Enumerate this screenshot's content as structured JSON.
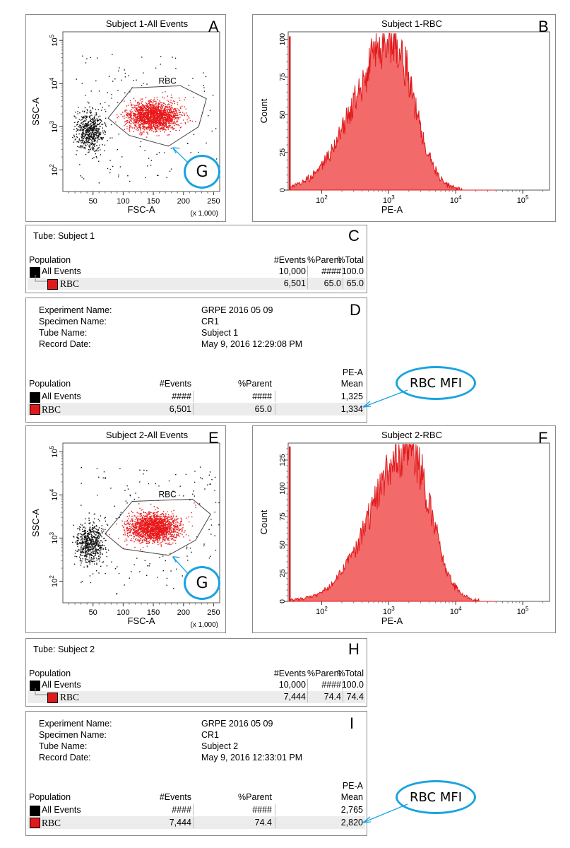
{
  "chart_data": [
    {
      "panel": "A",
      "type": "scatter",
      "title": "Subject 1-All Events",
      "xlabel": "FSC-A",
      "x_multiplier": "(x 1,000)",
      "ylabel": "SSC-A",
      "x_ticks": [
        "50",
        "100",
        "150",
        "200",
        "250"
      ],
      "y_ticks": [
        "10^2",
        "10^3",
        "10^4",
        "10^5"
      ],
      "xlim": [
        0,
        260
      ],
      "ylim_log10": [
        1.5,
        5.2
      ],
      "gate_label": "RBC",
      "gate_points": [
        [
          75,
          3.2
        ],
        [
          115,
          3.9
        ],
        [
          195,
          3.95
        ],
        [
          238,
          3.65
        ],
        [
          225,
          3.0
        ],
        [
          175,
          2.55
        ],
        [
          110,
          2.8
        ]
      ]
    },
    {
      "panel": "B",
      "type": "histogram",
      "title": "Subject 1-RBC",
      "xlabel": "PE-A",
      "ylabel": "Count",
      "x_ticks": [
        "10^2",
        "10^3",
        "10^4",
        "10^5"
      ],
      "y_ticks": [
        "0",
        "25",
        "50",
        "75",
        "100"
      ],
      "ylim": [
        0,
        105
      ],
      "xlim_log10": [
        1.5,
        5.4
      ],
      "peak_log10": 3.05,
      "peak_count": 100
    },
    {
      "panel": "E",
      "type": "scatter",
      "title": "Subject 2-All Events",
      "xlabel": "FSC-A",
      "x_multiplier": "(x 1,000)",
      "ylabel": "SSC-A",
      "x_ticks": [
        "50",
        "100",
        "150",
        "200",
        "250"
      ],
      "y_ticks": [
        "10^2",
        "10^3",
        "10^4",
        "10^5"
      ],
      "xlim": [
        0,
        260
      ],
      "ylim_log10": [
        1.5,
        5.2
      ],
      "gate_label": "RBC",
      "gate_points": [
        [
          70,
          3.1
        ],
        [
          115,
          3.85
        ],
        [
          215,
          3.9
        ],
        [
          245,
          3.55
        ],
        [
          220,
          2.95
        ],
        [
          175,
          2.6
        ],
        [
          100,
          2.75
        ]
      ]
    },
    {
      "panel": "F",
      "type": "histogram",
      "title": "Subject 2-RBC",
      "xlabel": "PE-A",
      "ylabel": "Count",
      "x_ticks": [
        "10^2",
        "10^3",
        "10^4",
        "10^5"
      ],
      "y_ticks": [
        "0",
        "25",
        "50",
        "75",
        "100",
        "125"
      ],
      "ylim": [
        0,
        140
      ],
      "xlim_log10": [
        1.5,
        5.4
      ],
      "peak_log10": 3.3,
      "peak_count": 135
    }
  ],
  "panels": {
    "A": "A",
    "B": "B",
    "C": "C",
    "D": "D",
    "E": "E",
    "F": "F",
    "H": "H",
    "I": "I"
  },
  "callouts": {
    "g_label": "G",
    "mfi_label": "RBC MFI"
  },
  "subject1": {
    "tube": "Tube:   Subject 1",
    "headers": {
      "population": "Population",
      "events": "#Events",
      "parent": "%Parent",
      "total": "%Total",
      "pe_top": "PE-A",
      "pe_bottom": "Mean"
    },
    "rows": [
      {
        "name": "All Events",
        "events": "10,000",
        "parent": "####",
        "total": "100.0",
        "mean": "1,325",
        "events_d": "####",
        "color": "#000000"
      },
      {
        "name": "RBC",
        "events": "6,501",
        "parent": "65.0",
        "total": "65.0",
        "mean": "1,334",
        "events_d": "6,501",
        "color": "#e0191b"
      }
    ],
    "labels": {
      "exp": "Experiment Name:",
      "spec": "Specimen Name:",
      "tube": "Tube Name:",
      "date": "Record Date:"
    },
    "values": {
      "exp": "GRPE 2016 05 09",
      "spec": "CR1",
      "tube": "Subject 1",
      "date": "May 9, 2016 12:29:08 PM"
    }
  },
  "subject2": {
    "tube": "Tube:   Subject 2",
    "headers": {
      "population": "Population",
      "events": "#Events",
      "parent": "%Parent",
      "total": "%Total",
      "pe_top": "PE-A",
      "pe_bottom": "Mean"
    },
    "rows": [
      {
        "name": "All Events",
        "events": "10,000",
        "parent": "####",
        "total": "100.0",
        "mean": "2,765",
        "events_d": "####",
        "color": "#000000"
      },
      {
        "name": "RBC",
        "events": "7,444",
        "parent": "74.4",
        "total": "74.4",
        "mean": "2,820",
        "events_d": "7,444",
        "color": "#e0191b"
      }
    ],
    "labels": {
      "exp": "Experiment Name:",
      "spec": "Specimen Name:",
      "tube": "Tube Name:",
      "date": "Record Date:"
    },
    "values": {
      "exp": "GRPE 2016 05 09",
      "spec": "CR1",
      "tube": "Subject 2",
      "date": "May 9, 2016 12:33:01 PM"
    }
  }
}
